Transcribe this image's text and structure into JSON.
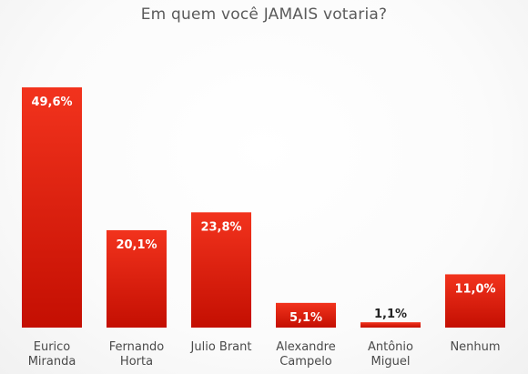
{
  "chart_data": {
    "type": "bar",
    "title": "Em quem você JAMAIS votaria?",
    "categories": [
      [
        "Eurico",
        "Miranda"
      ],
      [
        "Fernando",
        "Horta"
      ],
      [
        "Julio Brant"
      ],
      [
        "Alexandre",
        "Campelo"
      ],
      [
        "Antônio",
        "Miguel"
      ],
      [
        "Nenhum"
      ]
    ],
    "values": [
      49.6,
      20.1,
      23.8,
      5.1,
      1.1,
      11.0
    ],
    "value_labels": [
      "49,6%",
      "20,1%",
      "23,8%",
      "5,1%",
      "1,1%",
      "11,0%"
    ],
    "ylim": [
      0,
      50
    ],
    "grid": false,
    "colors": {
      "bar_top": "#f2331d",
      "bar_bottom": "#c40f02",
      "label_inside": "#ffffff",
      "label_outside": "#222222"
    }
  }
}
